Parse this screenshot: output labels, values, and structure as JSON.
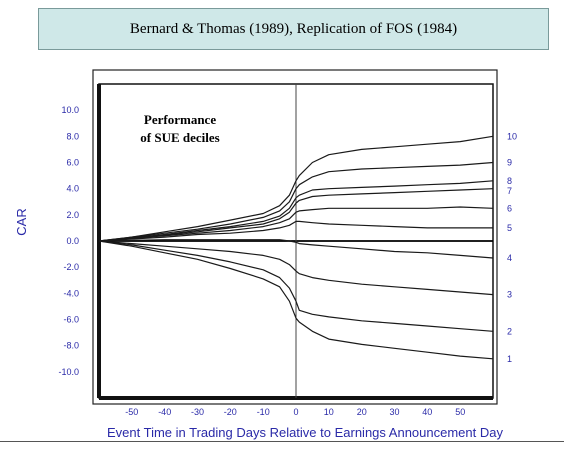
{
  "header": {
    "title": "Bernard & Thomas (1989), Replication of FOS (1984)"
  },
  "chart_data": {
    "type": "line",
    "annotation": [
      "Performance",
      "of SUE deciles"
    ],
    "xlabel": "Event Time in Trading Days Relative to Earnings Announcement Day",
    "ylabel": "CAR",
    "xlim": [
      -60,
      60
    ],
    "ylim": [
      -12,
      12
    ],
    "x_ticks": [
      -50,
      -40,
      -30,
      -20,
      -10,
      0,
      10,
      20,
      30,
      40,
      50
    ],
    "y_ticks": [
      "10.0",
      "8.0",
      "6.0",
      "4.0",
      "2.0",
      "0.0",
      "-2.0",
      "-4.0",
      "-6.0",
      "-8.0",
      "-10.0"
    ],
    "vertical_line_x": 0,
    "x": [
      -60,
      -50,
      -40,
      -30,
      -20,
      -10,
      -5,
      -2,
      0,
      1,
      5,
      10,
      20,
      30,
      40,
      50,
      60
    ],
    "series": [
      {
        "name": "10",
        "values": [
          0,
          0.3,
          0.7,
          1.1,
          1.6,
          2.1,
          2.7,
          3.5,
          4.6,
          5.0,
          6.0,
          6.6,
          7.0,
          7.2,
          7.4,
          7.6,
          8.0
        ]
      },
      {
        "name": "9",
        "values": [
          0,
          0.3,
          0.6,
          0.9,
          1.3,
          1.8,
          2.3,
          3.0,
          4.0,
          4.3,
          4.9,
          5.3,
          5.5,
          5.6,
          5.7,
          5.8,
          6.0
        ]
      },
      {
        "name": "8",
        "values": [
          0,
          0.25,
          0.5,
          0.8,
          1.1,
          1.5,
          1.9,
          2.5,
          3.3,
          3.5,
          3.9,
          4.0,
          4.1,
          4.2,
          4.3,
          4.4,
          4.6
        ]
      },
      {
        "name": "7",
        "values": [
          0,
          0.2,
          0.45,
          0.7,
          1.0,
          1.3,
          1.7,
          2.2,
          2.9,
          3.1,
          3.4,
          3.5,
          3.6,
          3.7,
          3.8,
          3.9,
          4.0
        ]
      },
      {
        "name": "6",
        "values": [
          0,
          0.2,
          0.4,
          0.6,
          0.8,
          1.1,
          1.4,
          1.7,
          2.2,
          2.3,
          2.4,
          2.5,
          2.5,
          2.5,
          2.5,
          2.6,
          2.5
        ]
      },
      {
        "name": "5",
        "values": [
          0,
          0.15,
          0.3,
          0.5,
          0.6,
          0.8,
          1.0,
          1.2,
          1.5,
          1.5,
          1.4,
          1.3,
          1.2,
          1.1,
          1.0,
          1.0,
          1.0
        ]
      },
      {
        "name": "4",
        "values": [
          0,
          0.05,
          0.1,
          0.1,
          0.1,
          0.1,
          0.1,
          0.0,
          -0.1,
          -0.2,
          -0.3,
          -0.4,
          -0.6,
          -0.8,
          -0.9,
          -1.1,
          -1.3
        ]
      },
      {
        "name": "3",
        "values": [
          0,
          -0.2,
          -0.4,
          -0.6,
          -0.8,
          -1.1,
          -1.4,
          -1.8,
          -2.3,
          -2.5,
          -2.8,
          -3.0,
          -3.3,
          -3.5,
          -3.7,
          -3.9,
          -4.1
        ]
      },
      {
        "name": "2",
        "values": [
          0,
          -0.3,
          -0.7,
          -1.1,
          -1.6,
          -2.2,
          -2.8,
          -3.6,
          -4.6,
          -5.3,
          -5.6,
          -5.8,
          -6.1,
          -6.3,
          -6.5,
          -6.7,
          -6.9
        ]
      },
      {
        "name": "1",
        "values": [
          0,
          -0.4,
          -0.9,
          -1.4,
          -2.1,
          -2.9,
          -3.5,
          -4.6,
          -5.9,
          -6.2,
          -6.9,
          -7.5,
          -7.9,
          -8.2,
          -8.5,
          -8.8,
          -9.0
        ]
      }
    ]
  }
}
